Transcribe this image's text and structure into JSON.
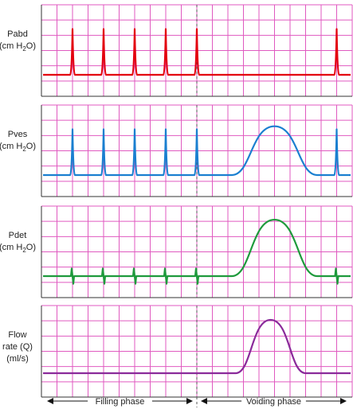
{
  "chart_data": {
    "type": "line",
    "panels": [
      {
        "name": "pabd",
        "label_lines": [
          "Pabd",
          "(cm H",
          "2",
          "O)"
        ],
        "color": "#e3000f",
        "baseline": 0,
        "spikes": [
          4,
          8,
          12,
          16,
          20,
          38
        ],
        "spike_height": 3,
        "spike_style": "up",
        "hump": null
      },
      {
        "name": "pves",
        "label_lines": [
          "Pves",
          "(cm H",
          "2",
          "O)"
        ],
        "color": "#1a7fd0",
        "baseline": 0,
        "spikes": [
          4,
          8,
          12,
          16,
          20,
          38
        ],
        "spike_height": 3,
        "spike_style": "up",
        "hump": {
          "start": 24.5,
          "end": 35.5,
          "height": 3.2
        }
      },
      {
        "name": "pdet",
        "label_lines": [
          "Pdet",
          "(cm H",
          "2",
          "O)"
        ],
        "color": "#1e9a3c",
        "baseline": 0,
        "spikes": [
          4,
          8,
          12,
          16,
          20,
          38
        ],
        "spike_height": 0.5,
        "spike_style": "blip",
        "hump": {
          "start": 24.5,
          "end": 35.5,
          "height": 3.7
        }
      },
      {
        "name": "flow",
        "label_lines": [
          "Flow",
          "rate (Q)",
          "(ml/s)"
        ],
        "color": "#8a2a9a",
        "baseline": 0,
        "spikes": [],
        "spike_height": 0,
        "spike_style": "none",
        "hump": {
          "start": 25,
          "end": 34,
          "height": 3.5
        }
      }
    ],
    "x_range": [
      0,
      40
    ],
    "divider_x": 20,
    "grid": true,
    "grid_color": "#e05ac0",
    "phases": [
      {
        "label": "Filling phase",
        "from": 0,
        "to": 20
      },
      {
        "label": "Voiding phase",
        "from": 20,
        "to": 40
      }
    ]
  }
}
